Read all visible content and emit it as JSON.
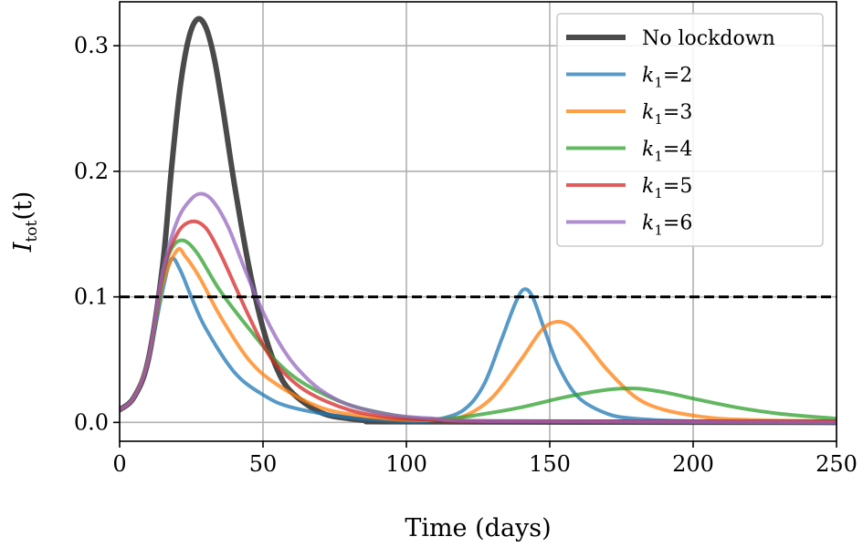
{
  "chart_data": {
    "type": "line",
    "xlabel": "Time (days)",
    "ylabel": {
      "main": "I",
      "sub": "tot",
      "suffix": "(t)"
    },
    "xlim": [
      0,
      250
    ],
    "ylim": [
      -0.015,
      0.335
    ],
    "x_ticks": [
      0,
      50,
      100,
      150,
      200,
      250
    ],
    "y_ticks": [
      0.0,
      0.1,
      0.2,
      0.3
    ],
    "x_tick_labels": [
      "0",
      "50",
      "100",
      "150",
      "200",
      "250"
    ],
    "y_tick_labels": [
      "0.0",
      "0.1",
      "0.2",
      "0.3"
    ],
    "grid": true,
    "legend_position": "top-right",
    "threshold": {
      "y": 0.1,
      "style": "dashed",
      "color": "#000000"
    },
    "series": [
      {
        "name": "No lockdown",
        "color": "#404040",
        "width": 6,
        "points": [
          [
            0,
            0.01
          ],
          [
            5,
            0.02
          ],
          [
            10,
            0.05
          ],
          [
            15,
            0.125
          ],
          [
            18,
            0.2
          ],
          [
            21,
            0.265
          ],
          [
            24,
            0.305
          ],
          [
            27,
            0.321
          ],
          [
            30,
            0.315
          ],
          [
            33,
            0.29
          ],
          [
            36,
            0.25
          ],
          [
            40,
            0.19
          ],
          [
            45,
            0.125
          ],
          [
            50,
            0.075
          ],
          [
            55,
            0.042
          ],
          [
            60,
            0.024
          ],
          [
            70,
            0.008
          ],
          [
            80,
            0.003
          ],
          [
            90,
            0.001
          ],
          [
            100,
            0.0005
          ],
          [
            250,
            0.0
          ]
        ]
      },
      {
        "name": "k1=2",
        "label_main": "k",
        "label_sub": "1",
        "label_rest": "=2",
        "color": "#1f77b4",
        "width": 4,
        "points": [
          [
            0,
            0.01
          ],
          [
            5,
            0.02
          ],
          [
            10,
            0.05
          ],
          [
            15,
            0.105
          ],
          [
            18,
            0.13
          ],
          [
            21,
            0.122
          ],
          [
            25,
            0.1
          ],
          [
            30,
            0.075
          ],
          [
            40,
            0.04
          ],
          [
            50,
            0.022
          ],
          [
            60,
            0.012
          ],
          [
            80,
            0.004
          ],
          [
            100,
            0.001
          ],
          [
            110,
            0.002
          ],
          [
            120,
            0.01
          ],
          [
            127,
            0.03
          ],
          [
            133,
            0.065
          ],
          [
            138,
            0.095
          ],
          [
            141,
            0.106
          ],
          [
            144,
            0.1
          ],
          [
            148,
            0.075
          ],
          [
            153,
            0.045
          ],
          [
            160,
            0.02
          ],
          [
            170,
            0.007
          ],
          [
            180,
            0.003
          ],
          [
            200,
            0.001
          ],
          [
            250,
            0.0
          ]
        ]
      },
      {
        "name": "k1=3",
        "label_main": "k",
        "label_sub": "1",
        "label_rest": "=3",
        "color": "#ff7f0e",
        "width": 4,
        "points": [
          [
            0,
            0.01
          ],
          [
            5,
            0.02
          ],
          [
            10,
            0.05
          ],
          [
            15,
            0.11
          ],
          [
            20,
            0.137
          ],
          [
            23,
            0.132
          ],
          [
            28,
            0.115
          ],
          [
            35,
            0.085
          ],
          [
            45,
            0.05
          ],
          [
            55,
            0.03
          ],
          [
            70,
            0.012
          ],
          [
            85,
            0.005
          ],
          [
            100,
            0.002
          ],
          [
            110,
            0.002
          ],
          [
            120,
            0.005
          ],
          [
            130,
            0.02
          ],
          [
            140,
            0.05
          ],
          [
            147,
            0.073
          ],
          [
            152,
            0.08
          ],
          [
            157,
            0.077
          ],
          [
            163,
            0.062
          ],
          [
            170,
            0.042
          ],
          [
            180,
            0.02
          ],
          [
            190,
            0.01
          ],
          [
            205,
            0.004
          ],
          [
            220,
            0.002
          ],
          [
            250,
            0.001
          ]
        ]
      },
      {
        "name": "k1=4",
        "label_main": "k",
        "label_sub": "1",
        "label_rest": "=4",
        "color": "#2ca02c",
        "width": 4,
        "points": [
          [
            0,
            0.01
          ],
          [
            5,
            0.02
          ],
          [
            10,
            0.05
          ],
          [
            15,
            0.115
          ],
          [
            18,
            0.138
          ],
          [
            22,
            0.145
          ],
          [
            27,
            0.135
          ],
          [
            35,
            0.105
          ],
          [
            45,
            0.075
          ],
          [
            55,
            0.048
          ],
          [
            65,
            0.03
          ],
          [
            80,
            0.014
          ],
          [
            95,
            0.006
          ],
          [
            105,
            0.003
          ],
          [
            115,
            0.003
          ],
          [
            125,
            0.006
          ],
          [
            140,
            0.012
          ],
          [
            155,
            0.02
          ],
          [
            170,
            0.026
          ],
          [
            180,
            0.027
          ],
          [
            190,
            0.024
          ],
          [
            200,
            0.019
          ],
          [
            215,
            0.012
          ],
          [
            230,
            0.007
          ],
          [
            250,
            0.003
          ]
        ]
      },
      {
        "name": "k1=5",
        "label_main": "k",
        "label_sub": "1",
        "label_rest": "=5",
        "color": "#d62728",
        "width": 4,
        "points": [
          [
            0,
            0.01
          ],
          [
            5,
            0.02
          ],
          [
            10,
            0.05
          ],
          [
            15,
            0.118
          ],
          [
            20,
            0.15
          ],
          [
            25,
            0.16
          ],
          [
            30,
            0.155
          ],
          [
            35,
            0.135
          ],
          [
            40,
            0.11
          ],
          [
            45,
            0.085
          ],
          [
            50,
            0.062
          ],
          [
            55,
            0.045
          ],
          [
            65,
            0.025
          ],
          [
            80,
            0.01
          ],
          [
            95,
            0.004
          ],
          [
            110,
            0.002
          ],
          [
            130,
            0.001
          ],
          [
            250,
            0.001
          ]
        ]
      },
      {
        "name": "k1=6",
        "label_main": "k",
        "label_sub": "1",
        "label_rest": "=6",
        "color": "#9467bd",
        "width": 4,
        "points": [
          [
            0,
            0.01
          ],
          [
            5,
            0.02
          ],
          [
            10,
            0.05
          ],
          [
            15,
            0.12
          ],
          [
            20,
            0.16
          ],
          [
            25,
            0.178
          ],
          [
            29,
            0.182
          ],
          [
            33,
            0.175
          ],
          [
            38,
            0.155
          ],
          [
            44,
            0.12
          ],
          [
            50,
            0.088
          ],
          [
            56,
            0.062
          ],
          [
            62,
            0.043
          ],
          [
            70,
            0.026
          ],
          [
            80,
            0.014
          ],
          [
            95,
            0.006
          ],
          [
            110,
            0.003
          ],
          [
            130,
            0.001
          ],
          [
            250,
            0.0
          ]
        ]
      }
    ]
  }
}
